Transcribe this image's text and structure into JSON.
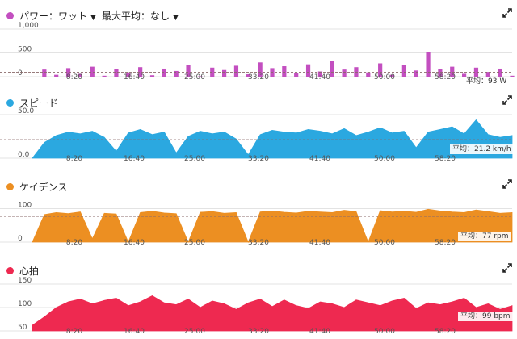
{
  "power": {
    "title": "パワー：ワット",
    "filter_label": "最大平均：なし",
    "avg_label": "平均：93 W",
    "color": "#c34fc0",
    "icon": "chevron-down-icon"
  },
  "speed": {
    "title": "スピード",
    "avg_label": "平均：21.2 km/h",
    "color": "#2ba8e0"
  },
  "cadence": {
    "title": "ケイデンス",
    "avg_label": "平均：77 rpm",
    "color": "#ec8f22"
  },
  "heart": {
    "title": "心拍",
    "avg_label": "平均：99 bpm",
    "color": "#ee2950"
  },
  "chart_data": [
    {
      "type": "bar",
      "series": [
        {
          "name": "パワー：ワット",
          "values": [
            0,
            150,
            40,
            180,
            60,
            210,
            20,
            160,
            90,
            200,
            30,
            170,
            120,
            250,
            10,
            190,
            140,
            230,
            50,
            300,
            180,
            220,
            70,
            260,
            110,
            330,
            150,
            200,
            90,
            280,
            40,
            240,
            130,
            520,
            160,
            210,
            60,
            190,
            100,
            170,
            20
          ]
        }
      ],
      "x_tick_labels": [
        "8:20",
        "16:40",
        "25:00",
        "33:20",
        "41:40",
        "50:00",
        "58:20"
      ],
      "y_tick_labels": [
        "0",
        "500",
        "1,000"
      ],
      "ylim": [
        0,
        1000
      ],
      "average": 93
    },
    {
      "type": "area",
      "series": [
        {
          "name": "スピード",
          "values": [
            0,
            18,
            26,
            30,
            28,
            31,
            24,
            8,
            29,
            33,
            27,
            30,
            6,
            25,
            31,
            28,
            30,
            22,
            4,
            27,
            32,
            30,
            29,
            33,
            31,
            28,
            34,
            26,
            30,
            35,
            29,
            31,
            12,
            30,
            33,
            36,
            28,
            44,
            27,
            24,
            26
          ]
        }
      ],
      "x_tick_labels": [
        "8:20",
        "16:40",
        "25:00",
        "33:20",
        "41:40",
        "50:00",
        "58:20"
      ],
      "y_tick_labels": [
        "0.0",
        "50.0"
      ],
      "ylim": [
        0,
        50
      ],
      "average": 21.2
    },
    {
      "type": "area",
      "series": [
        {
          "name": "ケイデンス",
          "values": [
            0,
            82,
            88,
            85,
            90,
            10,
            86,
            84,
            0,
            88,
            92,
            87,
            85,
            0,
            89,
            91,
            86,
            88,
            0,
            90,
            93,
            89,
            87,
            92,
            90,
            88,
            95,
            91,
            0,
            94,
            90,
            92,
            89,
            98,
            93,
            90,
            88,
            96,
            91,
            86,
            88
          ]
        }
      ],
      "x_tick_labels": [
        "8:20",
        "16:40",
        "25:00",
        "33:20",
        "41:40",
        "50:00",
        "58:20"
      ],
      "y_tick_labels": [
        "0",
        "100"
      ],
      "ylim": [
        0,
        130
      ],
      "average": 77
    },
    {
      "type": "area",
      "series": [
        {
          "name": "心拍",
          "values": [
            62,
            80,
            100,
            112,
            118,
            108,
            115,
            120,
            104,
            112,
            125,
            110,
            106,
            118,
            100,
            114,
            108,
            96,
            110,
            118,
            102,
            116,
            104,
            98,
            112,
            108,
            100,
            116,
            110,
            104,
            114,
            120,
            98,
            110,
            106,
            112,
            120,
            100,
            108,
            96,
            104
          ]
        }
      ],
      "x_tick_labels": [
        "8:20",
        "16:40",
        "25:00",
        "33:20",
        "41:40",
        "50:00",
        "58:20"
      ],
      "y_tick_labels": [
        "50",
        "100",
        "150"
      ],
      "ylim": [
        50,
        150
      ],
      "average": 99
    }
  ]
}
